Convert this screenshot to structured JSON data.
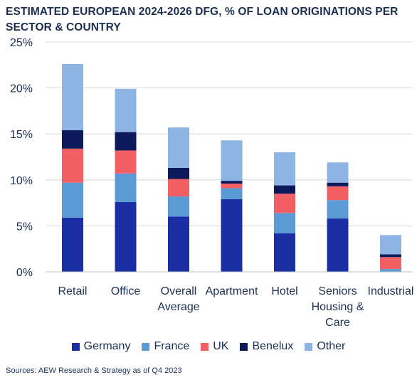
{
  "chart_data": {
    "type": "bar",
    "stacked": true,
    "title": "ESTIMATED EUROPEAN 2024-2026 DFG, % OF LOAN ORIGINATIONS PER SECTOR & COUNTRY",
    "categories": [
      [
        "Retail"
      ],
      [
        "Office"
      ],
      [
        "Overall",
        "Average"
      ],
      [
        "Apartment"
      ],
      [
        "Hotel"
      ],
      [
        "Seniors",
        "Housing &",
        "Care"
      ],
      [
        "Industrial"
      ]
    ],
    "series": [
      {
        "name": "Germany",
        "color": "#1a2fa3",
        "values": [
          5.9,
          7.6,
          6.0,
          7.9,
          4.2,
          5.8,
          0.0
        ]
      },
      {
        "name": "France",
        "color": "#5b9bd5",
        "values": [
          3.8,
          3.1,
          2.2,
          1.2,
          2.2,
          2.0,
          0.3
        ]
      },
      {
        "name": "UK",
        "color": "#f26065",
        "values": [
          3.7,
          2.5,
          1.9,
          0.5,
          2.1,
          1.5,
          1.3
        ]
      },
      {
        "name": "Benelux",
        "color": "#0c1a5c",
        "values": [
          2.0,
          2.0,
          1.2,
          0.3,
          0.9,
          0.4,
          0.3
        ]
      },
      {
        "name": "Other",
        "color": "#8db4e2",
        "values": [
          7.2,
          4.7,
          4.4,
          4.4,
          3.6,
          2.2,
          2.1
        ]
      }
    ],
    "y_ticks": [
      "0%",
      "5%",
      "10%",
      "15%",
      "20%",
      "25%"
    ],
    "ylim": [
      0,
      25
    ],
    "grid": true,
    "legend_position": "bottom"
  },
  "source": "Sources: AEW Research & Strategy as of Q4 2023"
}
